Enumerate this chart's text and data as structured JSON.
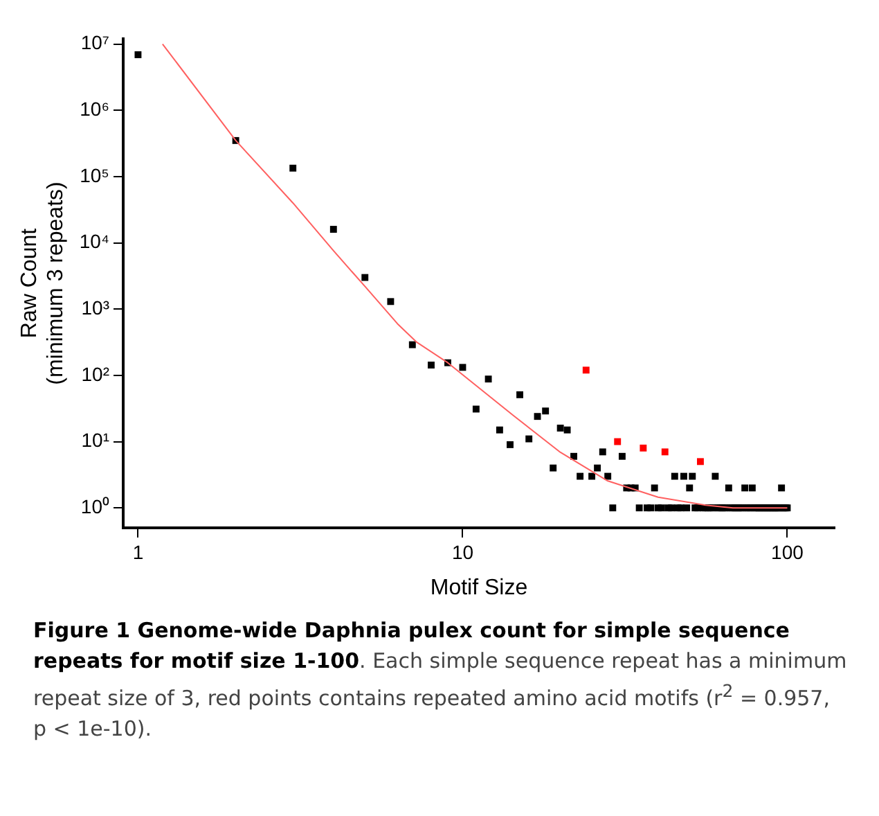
{
  "chart_data": {
    "type": "scatter",
    "title": "Figure 1 Genome-wide Daphnia pulex count for simple sequence repeats for motif size 1-100",
    "annotations": [
      ". Each simple sequence repeat has a minimum repeat size of 3, red points contains repeated amino acid motifs (r$^{2}$ = 0.957, p < 1e-10)."
    ],
    "xlabel": "Motif Size",
    "ylabel": "Raw Count\n(minimum 3 repeats)",
    "log": "xy",
    "grid": false,
    "legend": false,
    "marker": "square",
    "xlim": [
      0.9,
      140
    ],
    "ylim": [
      0.5,
      12000000
    ],
    "xticks": [
      1,
      10,
      100
    ],
    "yticks": [
      {
        "value": 1,
        "label": "10⁰"
      },
      {
        "value": 10,
        "label": "10¹"
      },
      {
        "value": 100,
        "label": "10²"
      },
      {
        "value": 1000,
        "label": "10³"
      },
      {
        "value": 10000,
        "label": "10⁴"
      },
      {
        "value": 100000,
        "label": "10⁵"
      },
      {
        "value": 1000000,
        "label": "10⁶"
      },
      {
        "value": 10000000,
        "label": "10⁷"
      }
    ],
    "series": [
      {
        "color": "#000000",
        "x": [
          1,
          2,
          3,
          4,
          5,
          6,
          7,
          8,
          9,
          10,
          11,
          12,
          13,
          14,
          15,
          16,
          17,
          18,
          19,
          20,
          21,
          22,
          23,
          25,
          26,
          27,
          28,
          29,
          31,
          32,
          33,
          34,
          35,
          37,
          38,
          39,
          40,
          41,
          43,
          44,
          45,
          46,
          47,
          48,
          49,
          50,
          51,
          52,
          53,
          55,
          56,
          57,
          58,
          59,
          60,
          61,
          62,
          63,
          64,
          65,
          66,
          67,
          68,
          69,
          70,
          71,
          72,
          73,
          74,
          75,
          76,
          77,
          78,
          79,
          80,
          81,
          82,
          83,
          84,
          85,
          86,
          87,
          88,
          89,
          90,
          91,
          92,
          93,
          94,
          95,
          96,
          97,
          98,
          99,
          100
        ],
        "values": [
          6900000,
          350000,
          134000,
          16000,
          3000,
          1300,
          290,
          143,
          155,
          132,
          31,
          88,
          15,
          9,
          51,
          11,
          24,
          29,
          4,
          16,
          15,
          6,
          3,
          3,
          4,
          7,
          3,
          1,
          6,
          2,
          2,
          2,
          1,
          1,
          1,
          2,
          1,
          1,
          1,
          1,
          3,
          1,
          1,
          3,
          1,
          2,
          3,
          1,
          1,
          1,
          1,
          1,
          1,
          1,
          3,
          1,
          1,
          1,
          1,
          1,
          2,
          1,
          1,
          1,
          1,
          1,
          1,
          1,
          2,
          1,
          1,
          1,
          2,
          1,
          1,
          1,
          1,
          1,
          1,
          1,
          1,
          1,
          1,
          1,
          1,
          1,
          1,
          1,
          1,
          1,
          2,
          1,
          1,
          1,
          1
        ]
      },
      {
        "color": "#ff0000",
        "x": [
          24,
          30,
          36,
          42,
          54
        ],
        "values": [
          120,
          10,
          8,
          7,
          5
        ]
      },
      {
        "type": "line",
        "color": "#ff6060",
        "marker": "none",
        "x": [
          1.19,
          2,
          3,
          4,
          5,
          6.3,
          7.2,
          9,
          14.3,
          20,
          28,
          40,
          56,
          68,
          100
        ],
        "values": [
          10000000,
          350000,
          40000,
          7600,
          2200,
          600,
          320,
          155,
          25,
          6.9,
          2.55,
          1.45,
          1.1,
          1,
          1
        ]
      }
    ]
  }
}
